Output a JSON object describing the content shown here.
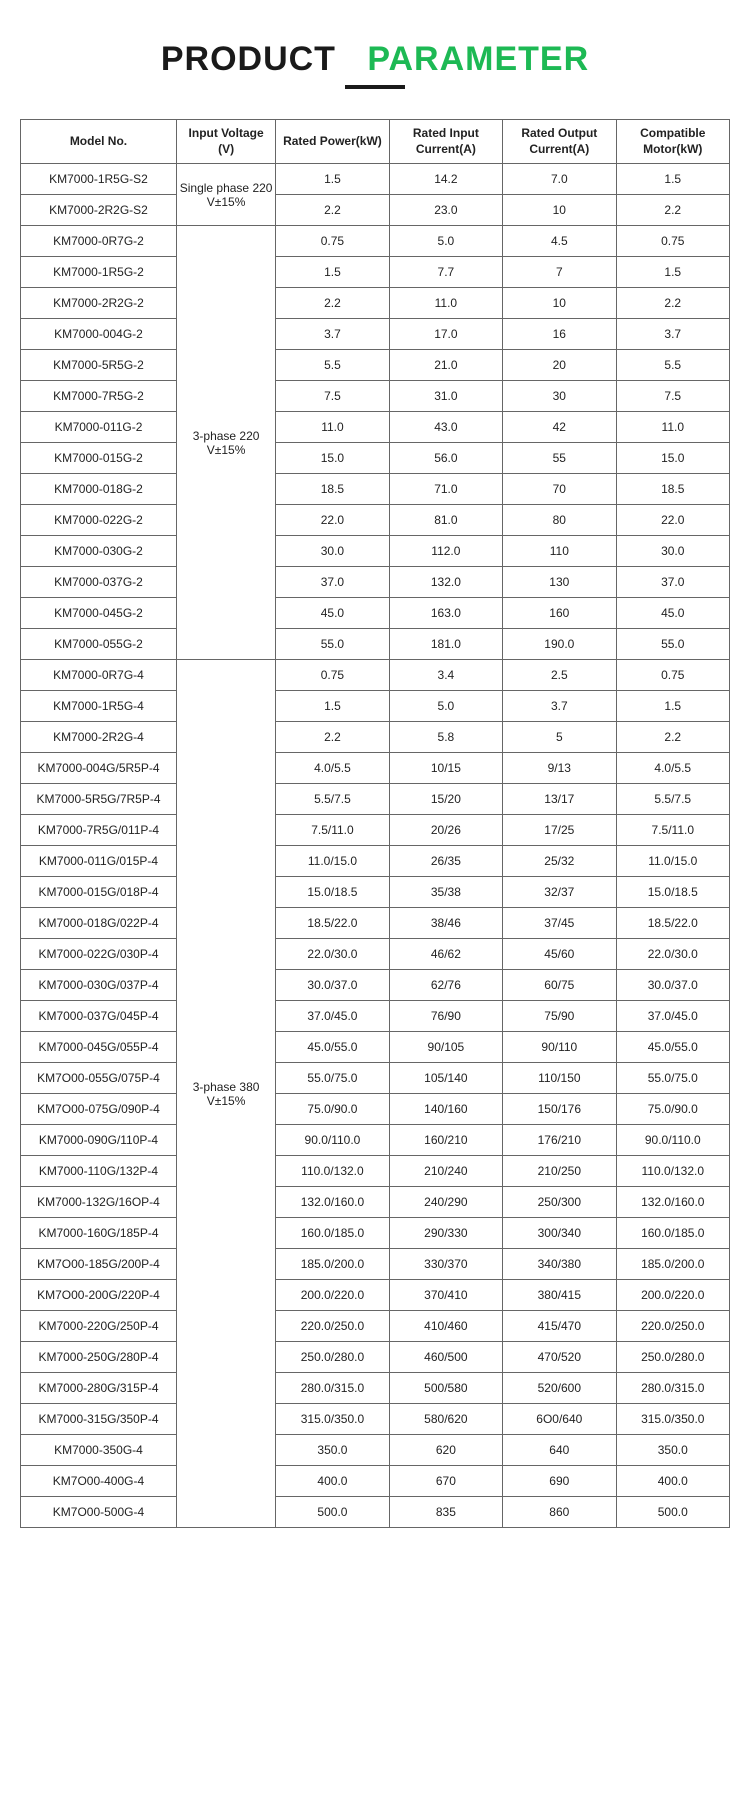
{
  "title_a": "PRODUCT",
  "title_b": "PARAMETER",
  "headers": {
    "model": "Model No.",
    "input_voltage": "Input Voltage (V)",
    "rated_power": "Rated Power(kW)",
    "rated_input_current": "Rated Input Current(A)",
    "rated_output_current": "Rated Output Current(A)",
    "compatible_motor": "Compatible Motor(kW)"
  },
  "groups": [
    {
      "voltage_label": "Single phase 220 V±15%",
      "rows": [
        {
          "model": "KM7000-1R5G-S2",
          "power": "1.5",
          "in": "14.2",
          "out": "7.0",
          "motor": "1.5"
        },
        {
          "model": "KM7000-2R2G-S2",
          "power": "2.2",
          "in": "23.0",
          "out": "10",
          "motor": "2.2"
        }
      ]
    },
    {
      "voltage_label": "3-phase 220 V±15%",
      "rows": [
        {
          "model": "KM7000-0R7G-2",
          "power": "0.75",
          "in": "5.0",
          "out": "4.5",
          "motor": "0.75"
        },
        {
          "model": "KM7000-1R5G-2",
          "power": "1.5",
          "in": "7.7",
          "out": "7",
          "motor": "1.5"
        },
        {
          "model": "KM7000-2R2G-2",
          "power": "2.2",
          "in": "11.0",
          "out": "10",
          "motor": "2.2"
        },
        {
          "model": "KM7000-004G-2",
          "power": "3.7",
          "in": "17.0",
          "out": "16",
          "motor": "3.7"
        },
        {
          "model": "KM7000-5R5G-2",
          "power": "5.5",
          "in": "21.0",
          "out": "20",
          "motor": "5.5"
        },
        {
          "model": "KM7000-7R5G-2",
          "power": "7.5",
          "in": "31.0",
          "out": "30",
          "motor": "7.5"
        },
        {
          "model": "KM7000-011G-2",
          "power": "11.0",
          "in": "43.0",
          "out": "42",
          "motor": "11.0"
        },
        {
          "model": "KM7000-015G-2",
          "power": "15.0",
          "in": "56.0",
          "out": "55",
          "motor": "15.0"
        },
        {
          "model": "KM7000-018G-2",
          "power": "18.5",
          "in": "71.0",
          "out": "70",
          "motor": "18.5"
        },
        {
          "model": "KM7000-022G-2",
          "power": "22.0",
          "in": "81.0",
          "out": "80",
          "motor": "22.0"
        },
        {
          "model": "KM7000-030G-2",
          "power": "30.0",
          "in": "112.0",
          "out": "110",
          "motor": "30.0"
        },
        {
          "model": "KM7000-037G-2",
          "power": "37.0",
          "in": "132.0",
          "out": "130",
          "motor": "37.0"
        },
        {
          "model": "KM7000-045G-2",
          "power": "45.0",
          "in": "163.0",
          "out": "160",
          "motor": "45.0"
        },
        {
          "model": "KM7000-055G-2",
          "power": "55.0",
          "in": "181.0",
          "out": "190.0",
          "motor": "55.0"
        }
      ]
    },
    {
      "voltage_label": "3-phase 380 V±15%",
      "rows": [
        {
          "model": "KM7000-0R7G-4",
          "power": "0.75",
          "in": "3.4",
          "out": "2.5",
          "motor": "0.75"
        },
        {
          "model": "KM7000-1R5G-4",
          "power": "1.5",
          "in": "5.0",
          "out": "3.7",
          "motor": "1.5"
        },
        {
          "model": "KM7000-2R2G-4",
          "power": "2.2",
          "in": "5.8",
          "out": "5",
          "motor": "2.2"
        },
        {
          "model": "KM7000-004G/5R5P-4",
          "power": "4.0/5.5",
          "in": "10/15",
          "out": "9/13",
          "motor": "4.0/5.5"
        },
        {
          "model": "KM7000-5R5G/7R5P-4",
          "power": "5.5/7.5",
          "in": "15/20",
          "out": "13/17",
          "motor": "5.5/7.5"
        },
        {
          "model": "KM7000-7R5G/011P-4",
          "power": "7.5/11.0",
          "in": "20/26",
          "out": "17/25",
          "motor": "7.5/11.0"
        },
        {
          "model": "KM7000-011G/015P-4",
          "power": "11.0/15.0",
          "in": "26/35",
          "out": "25/32",
          "motor": "11.0/15.0"
        },
        {
          "model": "KM7000-015G/018P-4",
          "power": "15.0/18.5",
          "in": "35/38",
          "out": "32/37",
          "motor": "15.0/18.5"
        },
        {
          "model": "KM7000-018G/022P-4",
          "power": "18.5/22.0",
          "in": "38/46",
          "out": "37/45",
          "motor": "18.5/22.0"
        },
        {
          "model": "KM7000-022G/030P-4",
          "power": "22.0/30.0",
          "in": "46/62",
          "out": "45/60",
          "motor": "22.0/30.0"
        },
        {
          "model": "KM7000-030G/037P-4",
          "power": "30.0/37.0",
          "in": "62/76",
          "out": "60/75",
          "motor": "30.0/37.0"
        },
        {
          "model": "KM7000-037G/045P-4",
          "power": "37.0/45.0",
          "in": "76/90",
          "out": "75/90",
          "motor": "37.0/45.0"
        },
        {
          "model": "KM7000-045G/055P-4",
          "power": "45.0/55.0",
          "in": "90/105",
          "out": "90/110",
          "motor": "45.0/55.0"
        },
        {
          "model": "KM7O00-055G/075P-4",
          "power": "55.0/75.0",
          "in": "105/140",
          "out": "110/150",
          "motor": "55.0/75.0"
        },
        {
          "model": "KM7O00-075G/090P-4",
          "power": "75.0/90.0",
          "in": "140/160",
          "out": "150/176",
          "motor": "75.0/90.0"
        },
        {
          "model": "KM7000-090G/110P-4",
          "power": "90.0/110.0",
          "in": "160/210",
          "out": "176/210",
          "motor": "90.0/110.0"
        },
        {
          "model": "KM7000-110G/132P-4",
          "power": "110.0/132.0",
          "in": "210/240",
          "out": "210/250",
          "motor": "110.0/132.0"
        },
        {
          "model": "KM7000-132G/16OP-4",
          "power": "132.0/160.0",
          "in": "240/290",
          "out": "250/300",
          "motor": "132.0/160.0"
        },
        {
          "model": "KM7000-160G/185P-4",
          "power": "160.0/185.0",
          "in": "290/330",
          "out": "300/340",
          "motor": "160.0/185.0"
        },
        {
          "model": "KM7O00-185G/200P-4",
          "power": "185.0/200.0",
          "in": "330/370",
          "out": "340/380",
          "motor": "185.0/200.0"
        },
        {
          "model": "KM7O00-200G/220P-4",
          "power": "200.0/220.0",
          "in": "370/410",
          "out": "380/415",
          "motor": "200.0/220.0"
        },
        {
          "model": "KM7000-220G/250P-4",
          "power": "220.0/250.0",
          "in": "410/460",
          "out": "415/470",
          "motor": "220.0/250.0"
        },
        {
          "model": "KM7000-250G/280P-4",
          "power": "250.0/280.0",
          "in": "460/500",
          "out": "470/520",
          "motor": "250.0/280.0"
        },
        {
          "model": "KM7000-280G/315P-4",
          "power": "280.0/315.0",
          "in": "500/580",
          "out": "520/600",
          "motor": "280.0/315.0"
        },
        {
          "model": "KM7000-315G/350P-4",
          "power": "315.0/350.0",
          "in": "580/620",
          "out": "6O0/640",
          "motor": "315.0/350.0"
        },
        {
          "model": "KM7000-350G-4",
          "power": "350.0",
          "in": "620",
          "out": "640",
          "motor": "350.0"
        },
        {
          "model": "KM7O00-400G-4",
          "power": "400.0",
          "in": "670",
          "out": "690",
          "motor": "400.0"
        },
        {
          "model": "KM7O00-500G-4",
          "power": "500.0",
          "in": "835",
          "out": "860",
          "motor": "500.0"
        }
      ]
    }
  ],
  "style": {
    "title_color_a": "#1a1a1a",
    "title_color_b": "#1db954",
    "border_color": "#666666",
    "font_size_header": 12,
    "font_size_cell": 12,
    "background": "#ffffff"
  }
}
